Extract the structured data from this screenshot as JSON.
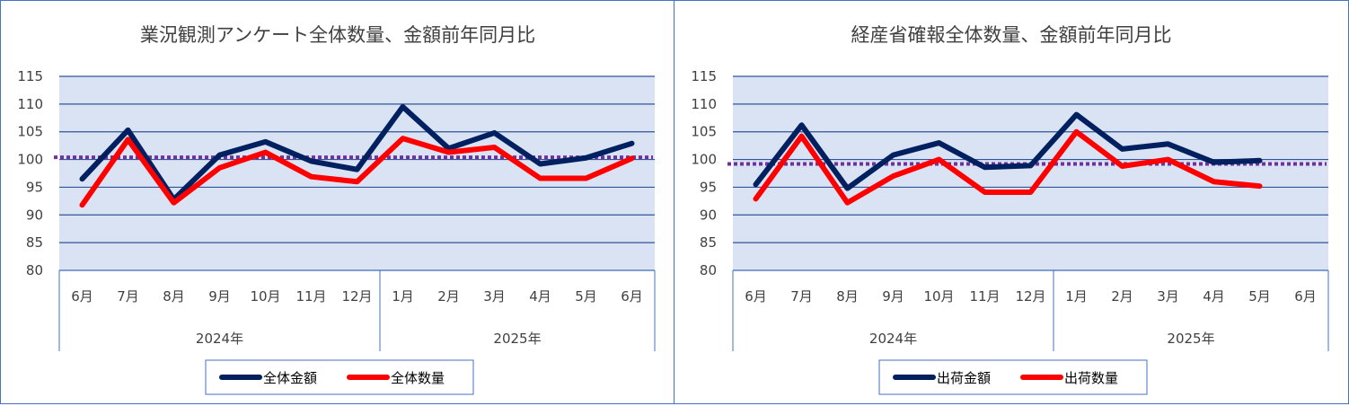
{
  "chart_data": [
    {
      "type": "line",
      "title": "業況観測アンケート全体数量、金額前年同月比",
      "categories": [
        "6月",
        "7月",
        "8月",
        "9月",
        "10月",
        "11月",
        "12月",
        "1月",
        "2月",
        "3月",
        "4月",
        "5月",
        "6月"
      ],
      "groups": [
        {
          "label": "2024年",
          "span": 7
        },
        {
          "label": "2025年",
          "span": 6
        }
      ],
      "ylim": [
        80,
        115
      ],
      "yticks": [
        80,
        85,
        90,
        95,
        100,
        105,
        110,
        115
      ],
      "grid": true,
      "reference_line": {
        "value": 100.4,
        "color": "#7030a0",
        "style": "dotted"
      },
      "legend_position": "bottom",
      "series": [
        {
          "name": "全体金額",
          "color": "#002060",
          "values": [
            96.5,
            105.3,
            92.8,
            100.8,
            103.2,
            99.7,
            98.2,
            109.5,
            102.0,
            104.8,
            99.2,
            100.3,
            102.9
          ]
        },
        {
          "name": "全体数量",
          "color": "#ff0000",
          "values": [
            91.8,
            103.6,
            92.2,
            98.5,
            101.3,
            96.9,
            96.0,
            103.8,
            101.3,
            102.2,
            96.6,
            96.6,
            100.2
          ]
        }
      ]
    },
    {
      "type": "line",
      "title": "経産省確報全体数量、金額前年同月比",
      "categories": [
        "6月",
        "7月",
        "8月",
        "9月",
        "10月",
        "11月",
        "12月",
        "1月",
        "2月",
        "3月",
        "4月",
        "5月",
        "6月"
      ],
      "groups": [
        {
          "label": "2024年",
          "span": 7
        },
        {
          "label": "2025年",
          "span": 6
        }
      ],
      "ylim": [
        80,
        115
      ],
      "yticks": [
        80,
        85,
        90,
        95,
        100,
        105,
        110,
        115
      ],
      "grid": true,
      "reference_line": {
        "value": 99.2,
        "color": "#7030a0",
        "style": "dotted"
      },
      "legend_position": "bottom",
      "series": [
        {
          "name": "出荷金額",
          "color": "#002060",
          "values": [
            95.5,
            106.2,
            94.8,
            100.8,
            103.0,
            98.6,
            98.9,
            108.1,
            101.9,
            102.8,
            99.5,
            99.8,
            null
          ]
        },
        {
          "name": "出荷数量",
          "color": "#ff0000",
          "values": [
            92.9,
            104.2,
            92.2,
            97.0,
            100.0,
            94.1,
            94.1,
            105.0,
            98.8,
            100.0,
            96.0,
            95.2,
            null
          ]
        }
      ]
    }
  ]
}
